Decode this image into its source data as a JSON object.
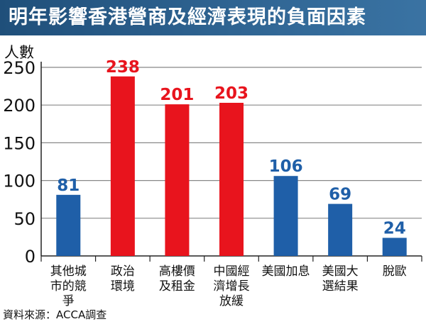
{
  "title": "明年影響香港營商及經濟表現的負面因素",
  "unit_label": "人數",
  "source": "資料來源：ACCA調查",
  "colors": {
    "blue": "#1f5fa8",
    "red": "#e8141d",
    "title_bg": "#2a5c8a"
  },
  "chart_data": {
    "type": "bar",
    "title": "明年影響香港營商及經濟表現的負面因素",
    "ylabel": "人數",
    "xlabel": "",
    "ylim": [
      0,
      250
    ],
    "yticks": [
      0,
      50,
      100,
      150,
      200,
      250
    ],
    "grid": true,
    "categories": [
      [
        "其他城",
        "市的競",
        "爭"
      ],
      [
        "政治",
        "環境"
      ],
      [
        "高樓價",
        "及租金"
      ],
      [
        "中國經",
        "濟增長",
        "放緩"
      ],
      [
        "美國加息"
      ],
      [
        "美國大",
        "選結果"
      ],
      [
        "脫歐"
      ]
    ],
    "values": [
      81,
      238,
      201,
      203,
      106,
      69,
      24
    ],
    "bar_colors": [
      "blue",
      "red",
      "red",
      "red",
      "blue",
      "blue",
      "blue"
    ]
  }
}
